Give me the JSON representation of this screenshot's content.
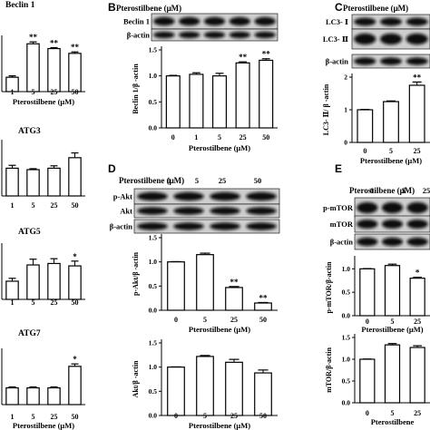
{
  "panel_letters": [
    "B",
    "C",
    "D",
    "E"
  ],
  "row_labels": {
    "B": [
      "Beclin 1",
      "β-actin"
    ],
    "C": [
      "LC3- Ⅰ",
      "LC3- Ⅱ",
      "β-actin"
    ],
    "D": [
      "p-Akt",
      "Akt",
      "β-actin"
    ],
    "E": [
      "p-mTOR",
      "mTOR",
      "β-actin"
    ]
  },
  "pterostilbene_header": {
    "B": {
      "label": "Pterostilbene (μM)",
      "doses": [
        "0",
        "1",
        "5",
        "25",
        "50"
      ]
    },
    "C": {
      "label": "Pterostilbene (μM)",
      "doses": [
        "0",
        "5",
        "25"
      ]
    },
    "D": {
      "label": "Pterostilbene (μM)",
      "doses": [
        "0",
        "5",
        "25",
        "50"
      ]
    },
    "E": {
      "label": "Pterostilbene (μM)",
      "doses": [
        "0",
        "5",
        "25"
      ]
    }
  },
  "chart_data": [
    {
      "id": "A1",
      "type": "bar",
      "title": "Beclin 1",
      "categories": [
        "1",
        "5",
        "25",
        "50"
      ],
      "values": [
        0.3,
        1.0,
        0.9,
        0.8
      ],
      "errors": [
        0.03,
        0.04,
        0.02,
        0.03
      ],
      "sig": [
        "",
        "**",
        "**",
        "**"
      ],
      "xlabel": "Pterostilbene (μM)",
      "ylim": [
        0,
        1.1
      ]
    },
    {
      "id": "A2",
      "type": "bar",
      "title": "ATG3",
      "categories": [
        "1",
        "5",
        "25",
        "50"
      ],
      "values": [
        0.58,
        0.55,
        0.58,
        0.8
      ],
      "errors": [
        0.06,
        0.02,
        0.05,
        0.1
      ],
      "sig": [
        "",
        "",
        "",
        ""
      ],
      "xlabel": "",
      "ylim": [
        0,
        1.1
      ]
    },
    {
      "id": "A3",
      "type": "bar",
      "title": "ATG5",
      "categories": [
        "1",
        "5",
        "25",
        "50"
      ],
      "values": [
        0.38,
        0.72,
        0.75,
        0.7
      ],
      "errors": [
        0.06,
        0.12,
        0.1,
        0.1
      ],
      "sig": [
        "",
        "",
        "",
        "*"
      ],
      "xlabel": "",
      "ylim": [
        0,
        1.1
      ]
    },
    {
      "id": "A4",
      "type": "bar",
      "title": "ATG7",
      "categories": [
        "1",
        "5",
        "25",
        "50"
      ],
      "values": [
        0.35,
        0.35,
        0.35,
        0.8
      ],
      "errors": [
        0.02,
        0.02,
        0.02,
        0.05
      ],
      "sig": [
        "",
        "",
        "",
        "*"
      ],
      "xlabel": "Pterostilbene (μM)",
      "ylim": [
        0,
        1.1
      ]
    },
    {
      "id": "B",
      "type": "bar",
      "categories": [
        "0",
        "1",
        "5",
        "25",
        "50"
      ],
      "values": [
        1.0,
        1.03,
        1.0,
        1.25,
        1.3
      ],
      "errors": [
        0.01,
        0.03,
        0.05,
        0.02,
        0.03
      ],
      "sig": [
        "",
        "",
        "",
        "**",
        "**"
      ],
      "xlabel": "Pterostilbene (μM)",
      "ylabel": "Beclin 1/β -actin",
      "yticks": [
        "0.0",
        "0.5",
        "1.0",
        "1.5"
      ],
      "ylim": [
        0,
        1.5
      ]
    },
    {
      "id": "C",
      "type": "bar",
      "categories": [
        "0",
        "5",
        "25"
      ],
      "values": [
        1.0,
        1.25,
        1.75
      ],
      "errors": [
        0.01,
        0.02,
        0.1
      ],
      "sig": [
        "",
        "",
        "**"
      ],
      "xlabel": "Pterostilbene (μM)",
      "ylabel": "LC3- Ⅱ/ β -actin",
      "yticks": [
        "0",
        "1",
        "2"
      ],
      "ylim": [
        0,
        2
      ]
    },
    {
      "id": "D1",
      "type": "bar",
      "categories": [
        "0",
        "5",
        "25",
        "50"
      ],
      "values": [
        1.0,
        1.15,
        0.47,
        0.15
      ],
      "errors": [
        0.005,
        0.03,
        0.02,
        0.01
      ],
      "sig": [
        "",
        "",
        "**",
        "**"
      ],
      "xlabel": "Pterostilbene (μM)",
      "ylabel": "p-Akt/β -actin",
      "yticks": [
        "0.0",
        "0.5",
        "1.0",
        "1.5"
      ],
      "ylim": [
        0,
        1.5
      ]
    },
    {
      "id": "D2",
      "type": "bar",
      "categories": [
        "0",
        "5",
        "25",
        "50"
      ],
      "values": [
        1.0,
        1.22,
        1.1,
        0.88
      ],
      "errors": [
        0.005,
        0.02,
        0.06,
        0.06
      ],
      "sig": [
        "",
        "",
        "",
        ""
      ],
      "xlabel": "Pterostilbene (μM)",
      "ylabel": "Akt/β -actin",
      "yticks": [
        "0.0",
        "0.5",
        "1.0",
        "1.5"
      ],
      "ylim": [
        0,
        1.5
      ]
    },
    {
      "id": "E1",
      "type": "bar",
      "categories": [
        "0",
        "5",
        "25"
      ],
      "values": [
        1.0,
        1.07,
        0.8
      ],
      "errors": [
        0.005,
        0.03,
        0.02
      ],
      "sig": [
        "",
        "",
        "*"
      ],
      "xlabel": "Pterostilbene (μM)",
      "ylabel": "p-mTOR/β-actin",
      "yticks": [
        "0.0",
        "0.5",
        "1.0"
      ],
      "ylim": [
        0,
        1.2
      ]
    },
    {
      "id": "E2",
      "type": "bar",
      "categories": [
        "0",
        "5",
        "25"
      ],
      "values": [
        1.0,
        1.33,
        1.27
      ],
      "errors": [
        0.005,
        0.03,
        0.04
      ],
      "sig": [
        "",
        "",
        ""
      ],
      "xlabel": "Pterostilbene",
      "ylabel": "mTOR/β-actin",
      "yticks": [
        "0.0",
        "0.5",
        "1.0",
        "1.5"
      ],
      "ylim": [
        0,
        1.5
      ]
    }
  ]
}
